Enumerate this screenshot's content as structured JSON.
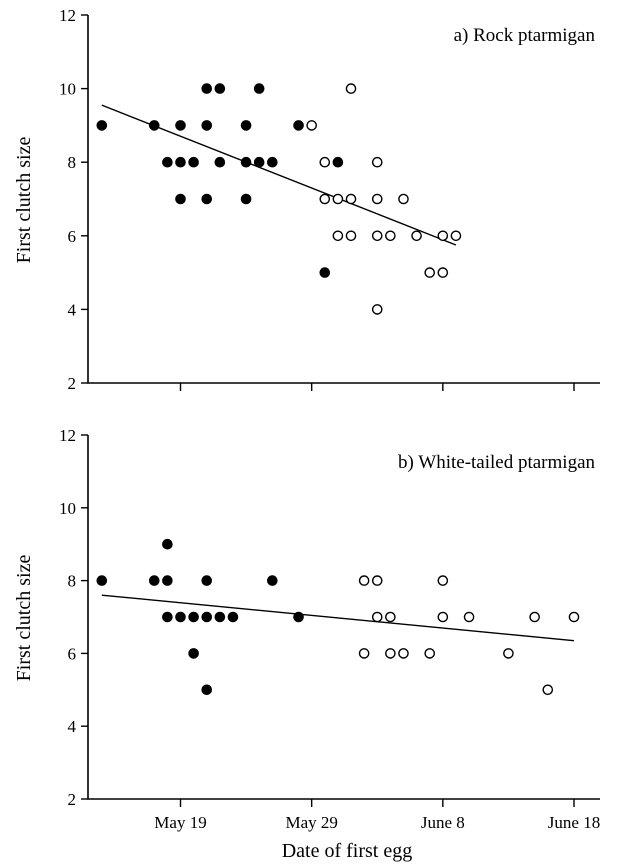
{
  "chart_data": [
    {
      "type": "scatter",
      "title": "a) Rock ptarmigan",
      "xlabel": "",
      "ylabel": "First clutch size",
      "ylim": [
        2,
        12
      ],
      "yticks": [
        2,
        4,
        6,
        8,
        10,
        12
      ],
      "xlim": [
        "2024-05-11",
        "2024-06-22"
      ],
      "xticks": [
        "2024-05-19",
        "2024-05-29",
        "2024-06-08",
        "2024-06-18"
      ],
      "xtick_labels": [
        "May 19",
        "May 29",
        "June 8",
        "June 18"
      ],
      "filled_color": "#000000",
      "open_color": "#ffffff",
      "series": [
        {
          "marker": "filled",
          "points": [
            [
              "2024-05-13",
              9
            ],
            [
              "2024-05-17",
              9
            ],
            [
              "2024-05-18",
              8
            ],
            [
              "2024-05-19",
              9
            ],
            [
              "2024-05-19",
              8
            ],
            [
              "2024-05-19",
              7
            ],
            [
              "2024-05-20",
              8
            ],
            [
              "2024-05-21",
              10
            ],
            [
              "2024-05-21",
              9
            ],
            [
              "2024-05-21",
              7
            ],
            [
              "2024-05-22",
              10
            ],
            [
              "2024-05-22",
              8
            ],
            [
              "2024-05-24",
              9
            ],
            [
              "2024-05-24",
              8
            ],
            [
              "2024-05-24",
              7
            ],
            [
              "2024-05-25",
              10
            ],
            [
              "2024-05-25",
              8
            ],
            [
              "2024-05-26",
              8
            ],
            [
              "2024-05-28",
              9
            ],
            [
              "2024-05-30",
              5
            ],
            [
              "2024-05-31",
              8
            ]
          ]
        },
        {
          "marker": "open",
          "points": [
            [
              "2024-05-29",
              9
            ],
            [
              "2024-05-30",
              8
            ],
            [
              "2024-05-30",
              7
            ],
            [
              "2024-05-31",
              7
            ],
            [
              "2024-05-31",
              6
            ],
            [
              "2024-06-01",
              10
            ],
            [
              "2024-06-01",
              7
            ],
            [
              "2024-06-01",
              6
            ],
            [
              "2024-06-03",
              8
            ],
            [
              "2024-06-03",
              7
            ],
            [
              "2024-06-03",
              6
            ],
            [
              "2024-06-03",
              4
            ],
            [
              "2024-06-04",
              6
            ],
            [
              "2024-06-05",
              7
            ],
            [
              "2024-06-06",
              6
            ],
            [
              "2024-06-07",
              5
            ],
            [
              "2024-06-08",
              5
            ],
            [
              "2024-06-08",
              6
            ],
            [
              "2024-06-09",
              6
            ]
          ]
        }
      ],
      "trendline": [
        [
          "2024-05-13",
          9.55
        ],
        [
          "2024-06-09",
          5.75
        ]
      ]
    },
    {
      "type": "scatter",
      "title": "b) White-tailed ptarmigan",
      "xlabel": "Date of first egg",
      "ylabel": "First clutch size",
      "ylim": [
        2,
        12
      ],
      "yticks": [
        2,
        4,
        6,
        8,
        10,
        12
      ],
      "xlim": [
        "2024-05-11",
        "2024-06-22"
      ],
      "xticks": [
        "2024-05-19",
        "2024-05-29",
        "2024-06-08",
        "2024-06-18"
      ],
      "xtick_labels": [
        "May 19",
        "May 29",
        "June 8",
        "June 18"
      ],
      "filled_color": "#000000",
      "open_color": "#ffffff",
      "series": [
        {
          "marker": "filled",
          "points": [
            [
              "2024-05-13",
              8
            ],
            [
              "2024-05-17",
              8
            ],
            [
              "2024-05-18",
              9
            ],
            [
              "2024-05-18",
              8
            ],
            [
              "2024-05-18",
              7
            ],
            [
              "2024-05-19",
              7
            ],
            [
              "2024-05-20",
              7
            ],
            [
              "2024-05-20",
              6
            ],
            [
              "2024-05-21",
              8
            ],
            [
              "2024-05-21",
              7
            ],
            [
              "2024-05-21",
              5
            ],
            [
              "2024-05-22",
              7
            ],
            [
              "2024-05-23",
              7
            ],
            [
              "2024-05-26",
              8
            ],
            [
              "2024-05-28",
              7
            ]
          ]
        },
        {
          "marker": "open",
          "points": [
            [
              "2024-06-02",
              8
            ],
            [
              "2024-06-02",
              6
            ],
            [
              "2024-06-03",
              8
            ],
            [
              "2024-06-03",
              7
            ],
            [
              "2024-06-04",
              7
            ],
            [
              "2024-06-04",
              6
            ],
            [
              "2024-06-05",
              6
            ],
            [
              "2024-06-07",
              6
            ],
            [
              "2024-06-08",
              8
            ],
            [
              "2024-06-08",
              7
            ],
            [
              "2024-06-10",
              7
            ],
            [
              "2024-06-13",
              6
            ],
            [
              "2024-06-15",
              7
            ],
            [
              "2024-06-16",
              5
            ],
            [
              "2024-06-18",
              7
            ]
          ]
        }
      ],
      "trendline": [
        [
          "2024-05-13",
          7.6
        ],
        [
          "2024-06-18",
          6.35
        ]
      ]
    }
  ]
}
